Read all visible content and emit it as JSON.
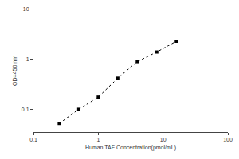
{
  "chart_data": {
    "type": "line",
    "x_label": "Human TAF Concentration(pmol/mL)",
    "y_label": "OD=450 nm",
    "x": [
      0.25,
      0.5,
      1,
      2,
      4,
      8,
      16
    ],
    "values": [
      0.052,
      0.1,
      0.175,
      0.42,
      0.9,
      1.4,
      2.3
    ],
    "color": "#000000",
    "marker": "square",
    "line_style": "dotted",
    "log": true,
    "grid": false,
    "xlim": [
      0.1,
      100
    ],
    "xticks": [
      0.1,
      1,
      10,
      100
    ],
    "ylim": [
      0.035,
      10
    ],
    "yticks": [
      0.1,
      1,
      10
    ]
  }
}
